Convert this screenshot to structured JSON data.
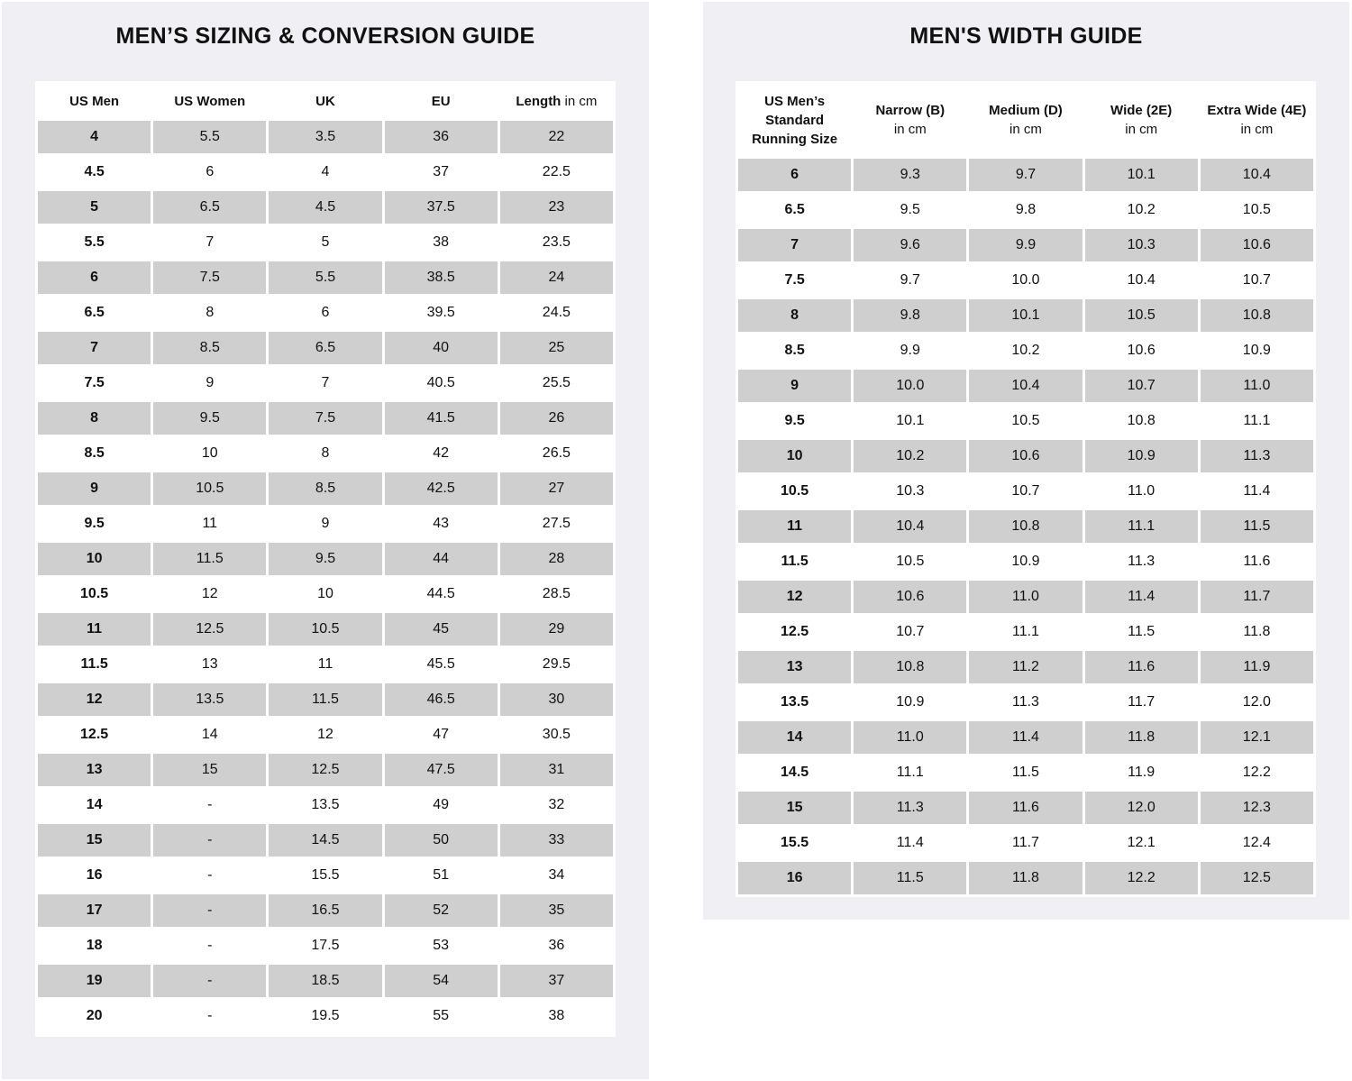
{
  "sizing_guide": {
    "title": "MEN’S SIZING & CONVERSION GUIDE",
    "headers": [
      "US Men",
      "US Women",
      "UK",
      "EU",
      "Length"
    ],
    "length_unit": "in cm",
    "rows": [
      [
        "4",
        "5.5",
        "3.5",
        "36",
        "22"
      ],
      [
        "4.5",
        "6",
        "4",
        "37",
        "22.5"
      ],
      [
        "5",
        "6.5",
        "4.5",
        "37.5",
        "23"
      ],
      [
        "5.5",
        "7",
        "5",
        "38",
        "23.5"
      ],
      [
        "6",
        "7.5",
        "5.5",
        "38.5",
        "24"
      ],
      [
        "6.5",
        "8",
        "6",
        "39.5",
        "24.5"
      ],
      [
        "7",
        "8.5",
        "6.5",
        "40",
        "25"
      ],
      [
        "7.5",
        "9",
        "7",
        "40.5",
        "25.5"
      ],
      [
        "8",
        "9.5",
        "7.5",
        "41.5",
        "26"
      ],
      [
        "8.5",
        "10",
        "8",
        "42",
        "26.5"
      ],
      [
        "9",
        "10.5",
        "8.5",
        "42.5",
        "27"
      ],
      [
        "9.5",
        "11",
        "9",
        "43",
        "27.5"
      ],
      [
        "10",
        "11.5",
        "9.5",
        "44",
        "28"
      ],
      [
        "10.5",
        "12",
        "10",
        "44.5",
        "28.5"
      ],
      [
        "11",
        "12.5",
        "10.5",
        "45",
        "29"
      ],
      [
        "11.5",
        "13",
        "11",
        "45.5",
        "29.5"
      ],
      [
        "12",
        "13.5",
        "11.5",
        "46.5",
        "30"
      ],
      [
        "12.5",
        "14",
        "12",
        "47",
        "30.5"
      ],
      [
        "13",
        "15",
        "12.5",
        "47.5",
        "31"
      ],
      [
        "14",
        "-",
        "13.5",
        "49",
        "32"
      ],
      [
        "15",
        "-",
        "14.5",
        "50",
        "33"
      ],
      [
        "16",
        "-",
        "15.5",
        "51",
        "34"
      ],
      [
        "17",
        "-",
        "16.5",
        "52",
        "35"
      ],
      [
        "18",
        "-",
        "17.5",
        "53",
        "36"
      ],
      [
        "19",
        "-",
        "18.5",
        "54",
        "37"
      ],
      [
        "20",
        "-",
        "19.5",
        "55",
        "38"
      ]
    ]
  },
  "width_guide": {
    "title": "MEN'S WIDTH GUIDE",
    "headers": [
      {
        "label": "US Men’s Standard Running Size",
        "sub": ""
      },
      {
        "label": "Narrow (B)",
        "sub": "in cm"
      },
      {
        "label": "Medium (D)",
        "sub": "in cm"
      },
      {
        "label": "Wide (2E)",
        "sub": "in cm"
      },
      {
        "label": "Extra Wide (4E)",
        "sub": "in cm"
      }
    ],
    "rows": [
      [
        "6",
        "9.3",
        "9.7",
        "10.1",
        "10.4"
      ],
      [
        "6.5",
        "9.5",
        "9.8",
        "10.2",
        "10.5"
      ],
      [
        "7",
        "9.6",
        "9.9",
        "10.3",
        "10.6"
      ],
      [
        "7.5",
        "9.7",
        "10.0",
        "10.4",
        "10.7"
      ],
      [
        "8",
        "9.8",
        "10.1",
        "10.5",
        "10.8"
      ],
      [
        "8.5",
        "9.9",
        "10.2",
        "10.6",
        "10.9"
      ],
      [
        "9",
        "10.0",
        "10.4",
        "10.7",
        "11.0"
      ],
      [
        "9.5",
        "10.1",
        "10.5",
        "10.8",
        "11.1"
      ],
      [
        "10",
        "10.2",
        "10.6",
        "10.9",
        "11.3"
      ],
      [
        "10.5",
        "10.3",
        "10.7",
        "11.0",
        "11.4"
      ],
      [
        "11",
        "10.4",
        "10.8",
        "11.1",
        "11.5"
      ],
      [
        "11.5",
        "10.5",
        "10.9",
        "11.3",
        "11.6"
      ],
      [
        "12",
        "10.6",
        "11.0",
        "11.4",
        "11.7"
      ],
      [
        "12.5",
        "10.7",
        "11.1",
        "11.5",
        "11.8"
      ],
      [
        "13",
        "10.8",
        "11.2",
        "11.6",
        "11.9"
      ],
      [
        "13.5",
        "10.9",
        "11.3",
        "11.7",
        "12.0"
      ],
      [
        "14",
        "11.0",
        "11.4",
        "11.8",
        "12.1"
      ],
      [
        "14.5",
        "11.1",
        "11.5",
        "11.9",
        "12.2"
      ],
      [
        "15",
        "11.3",
        "11.6",
        "12.0",
        "12.3"
      ],
      [
        "15.5",
        "11.4",
        "11.7",
        "12.1",
        "12.4"
      ],
      [
        "16",
        "11.5",
        "11.8",
        "12.2",
        "12.5"
      ]
    ]
  },
  "colors": {
    "panel_bg": "#f0f0f4",
    "shaded_cell": "#cfcfcf"
  }
}
